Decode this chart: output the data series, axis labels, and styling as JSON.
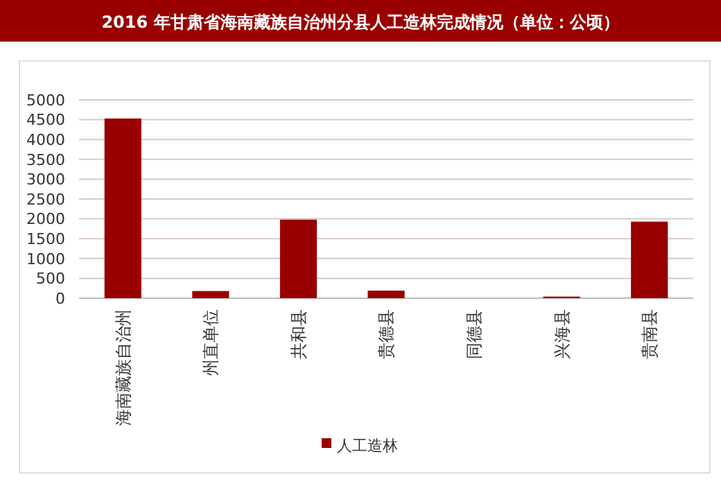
{
  "chart_data": {
    "type": "bar",
    "title": "2016 年甘肃省海南藏族自治州分县人工造林完成情况（单位：公顷）",
    "categories": [
      "海南藏族自治州",
      "州直单位",
      "共和县",
      "贵德县",
      "同德县",
      "兴海县",
      "贵南县"
    ],
    "series": [
      {
        "name": "人工造林",
        "color": "#990000",
        "values": [
          4530,
          180,
          1980,
          190,
          0,
          40,
          1930
        ]
      }
    ],
    "ylim": [
      0,
      5000
    ],
    "yticks": [
      0,
      500,
      1000,
      1500,
      2000,
      2500,
      3000,
      3500,
      4000,
      4500,
      5000
    ],
    "grid": "y",
    "legend": "bottom"
  }
}
